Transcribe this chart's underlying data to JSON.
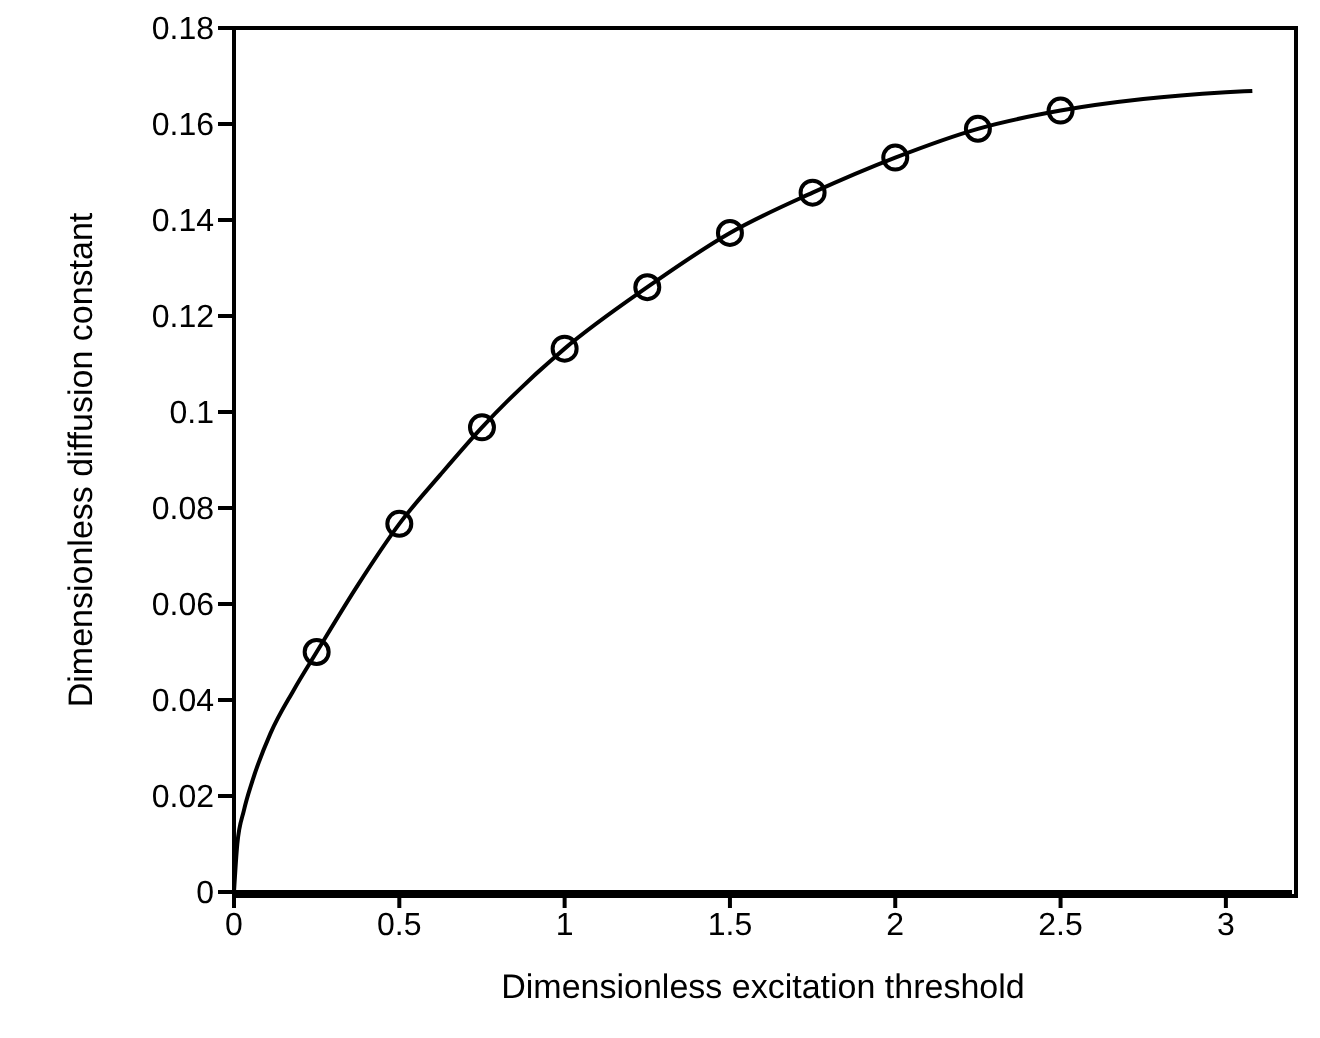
{
  "chart_data": {
    "type": "line",
    "xlabel": "Dimensionless excitation threshold",
    "ylabel": "Dimensionless diffusion constant",
    "xlim": [
      0,
      3.2
    ],
    "xticks": [
      0,
      0.5,
      1,
      1.5,
      2,
      2.5,
      3
    ],
    "ylim": [
      0,
      0.18
    ],
    "yticks": [
      0,
      0.02,
      0.04,
      0.06,
      0.08,
      0.1,
      0.12,
      0.14,
      0.16,
      0.18
    ],
    "grid": false,
    "series": [
      {
        "color": "#000000",
        "marker": "none",
        "x": [
          0,
          0.01,
          0.03,
          0.055,
          0.11,
          0.18,
          0.25,
          0.375,
          0.5,
          0.625,
          0.75,
          1,
          1.25,
          1.5,
          1.75,
          2,
          2.25,
          2.5,
          2.75,
          3,
          3.08
        ],
        "values": [
          0,
          0.01,
          0.017,
          0.023,
          0.033,
          0.042,
          0.05,
          0.064,
          0.0767,
          0.087,
          0.0968,
          0.1132,
          0.126,
          0.1373,
          0.1457,
          0.153,
          0.159,
          0.1628,
          0.1652,
          0.1666,
          0.1669
        ]
      },
      {
        "type": "scatter",
        "color": "#000000",
        "marker": "circle",
        "x": [
          0.25,
          0.5,
          0.75,
          1,
          1.25,
          1.5,
          1.75,
          2,
          2.25,
          2.5
        ],
        "values": [
          0.05,
          0.0767,
          0.0968,
          0.1132,
          0.126,
          0.1373,
          0.1457,
          0.153,
          0.159,
          0.1628
        ]
      }
    ]
  }
}
